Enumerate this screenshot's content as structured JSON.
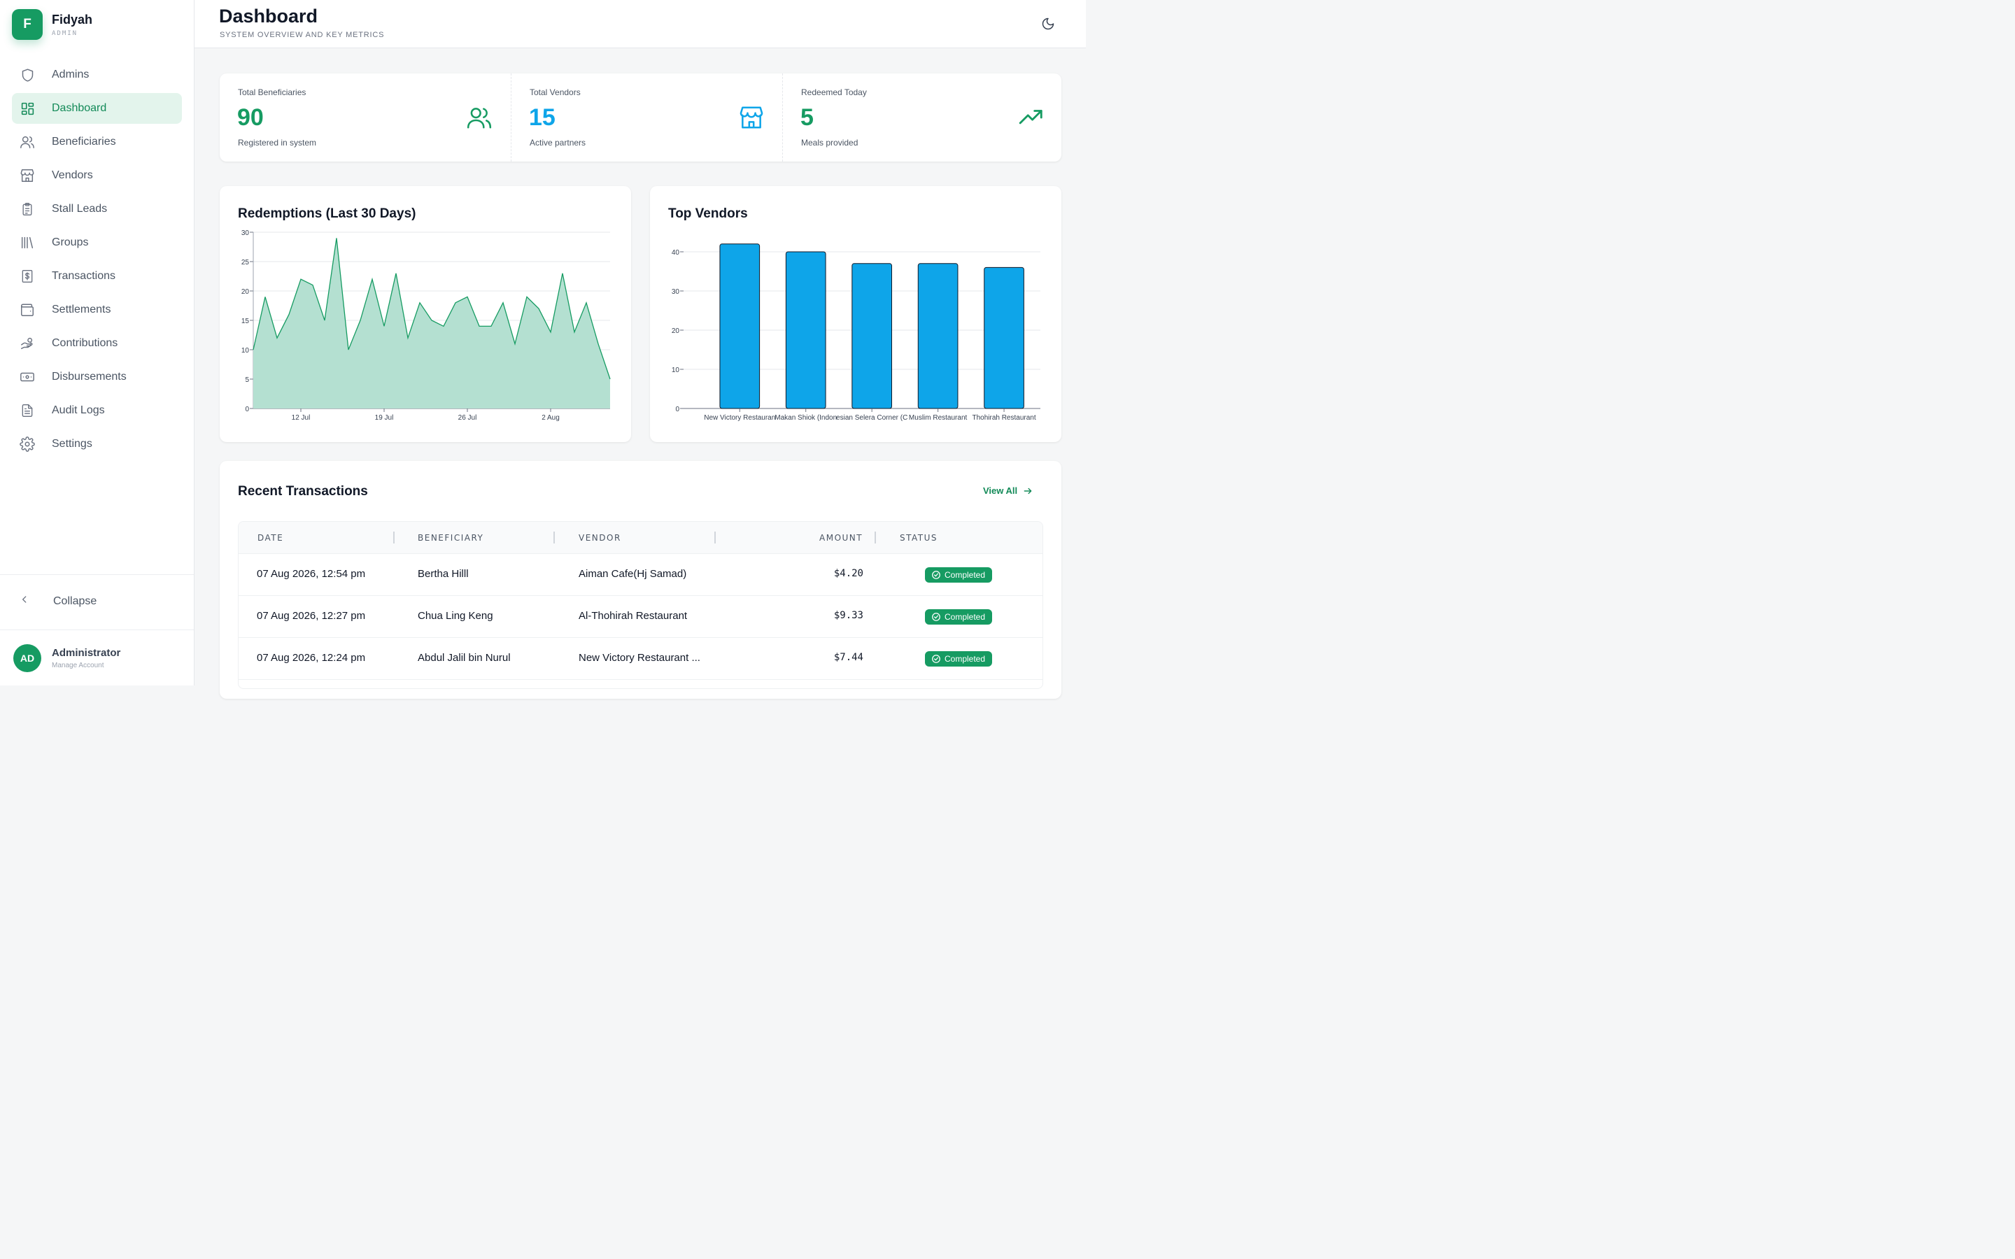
{
  "brand": {
    "initial": "F",
    "name": "Fidyah",
    "role": "ADMIN"
  },
  "nav": [
    {
      "label": "Admins",
      "icon": "shield-icon"
    },
    {
      "label": "Dashboard",
      "icon": "dashboard-grid-icon",
      "active": true
    },
    {
      "label": "Beneficiaries",
      "icon": "users-icon"
    },
    {
      "label": "Vendors",
      "icon": "store-icon"
    },
    {
      "label": "Stall Leads",
      "icon": "clipboard-icon"
    },
    {
      "label": "Groups",
      "icon": "library-icon"
    },
    {
      "label": "Transactions",
      "icon": "receipt-dollar-icon"
    },
    {
      "label": "Settlements",
      "icon": "wallet-icon"
    },
    {
      "label": "Contributions",
      "icon": "hand-coins-icon"
    },
    {
      "label": "Disbursements",
      "icon": "banknote-icon"
    },
    {
      "label": "Audit Logs",
      "icon": "file-text-icon"
    },
    {
      "label": "Settings",
      "icon": "gear-icon"
    }
  ],
  "collapse_label": "Collapse",
  "user": {
    "initials": "AD",
    "name": "Administrator",
    "sub": "Manage Account"
  },
  "header": {
    "title": "Dashboard",
    "subtitle": "SYSTEM OVERVIEW AND KEY METRICS"
  },
  "stats": [
    {
      "label": "Total Beneficiaries",
      "value": "90",
      "sub": "Registered in system",
      "icon": "users-icon",
      "color": "#169b62"
    },
    {
      "label": "Total Vendors",
      "value": "15",
      "sub": "Active partners",
      "icon": "store-icon",
      "color": "#0ea5e9"
    },
    {
      "label": "Redeemed Today",
      "value": "5",
      "sub": "Meals provided",
      "icon": "trending-up-icon",
      "color": "#169b62"
    }
  ],
  "redemptions": {
    "title": "Redemptions (Last 30 Days)",
    "chart_data": {
      "type": "area",
      "x": [
        "8 Jul",
        "9 Jul",
        "10 Jul",
        "11 Jul",
        "12 Jul",
        "13 Jul",
        "14 Jul",
        "15 Jul",
        "16 Jul",
        "17 Jul",
        "18 Jul",
        "19 Jul",
        "20 Jul",
        "21 Jul",
        "22 Jul",
        "23 Jul",
        "24 Jul",
        "25 Jul",
        "26 Jul",
        "27 Jul",
        "28 Jul",
        "29 Jul",
        "30 Jul",
        "31 Jul",
        "1 Aug",
        "2 Aug",
        "3 Aug",
        "4 Aug",
        "5 Aug",
        "6 Aug",
        "7 Aug"
      ],
      "values": [
        10,
        19,
        12,
        16,
        22,
        21,
        15,
        29,
        10,
        15,
        22,
        14,
        23,
        12,
        18,
        15,
        14,
        18,
        19,
        14,
        14,
        18,
        11,
        19,
        17,
        13,
        23,
        13,
        18,
        11,
        5
      ],
      "xticks": [
        "12 Jul",
        "19 Jul",
        "26 Jul",
        "2 Aug"
      ],
      "ylim": [
        0,
        30
      ],
      "yticks": [
        0,
        5,
        10,
        15,
        20,
        25,
        30
      ],
      "grid": true,
      "fill_color": "#b4e0d1",
      "line_color": "#169b62"
    }
  },
  "top_vendors": {
    "title": "Top Vendors",
    "chart_data": {
      "type": "bar",
      "categories": [
        "New Victory Restaurant",
        "Makan Shiok (Indonesian",
        "Selera Corner (C",
        "Muslim Restaurant",
        "Thohirah Restaurant"
      ],
      "tick_labels": [
        "New Victory Restauran",
        "Makan Shiok (Indon",
        "esian Selera Corner (C",
        "Muslim Restaurant",
        "Thohirah Restaurant"
      ],
      "values": [
        42,
        40,
        37,
        37,
        36
      ],
      "ylim": [
        0,
        45
      ],
      "yticks": [
        0,
        10,
        20,
        30,
        40
      ],
      "grid": true,
      "bar_color": "#0ea5e9"
    }
  },
  "transactions": {
    "title": "Recent Transactions",
    "view_all": "View All",
    "columns": [
      "DATE",
      "BENEFICIARY",
      "VENDOR",
      "AMOUNT",
      "STATUS"
    ],
    "rows": [
      {
        "date": "07 Aug 2026, 12:54 pm",
        "beneficiary": "Bertha Hilll",
        "vendor": "Aiman Cafe(Hj Samad)",
        "amount": "$4.20",
        "status": "Completed"
      },
      {
        "date": "07 Aug 2026, 12:27 pm",
        "beneficiary": "Chua Ling Keng",
        "vendor": "Al-Thohirah Restaurant",
        "amount": "$9.33",
        "status": "Completed"
      },
      {
        "date": "07 Aug 2026, 12:24 pm",
        "beneficiary": "Abdul Jalil bin Nurul",
        "vendor": "New Victory Restaurant ...",
        "amount": "$7.44",
        "status": "Completed"
      }
    ]
  }
}
